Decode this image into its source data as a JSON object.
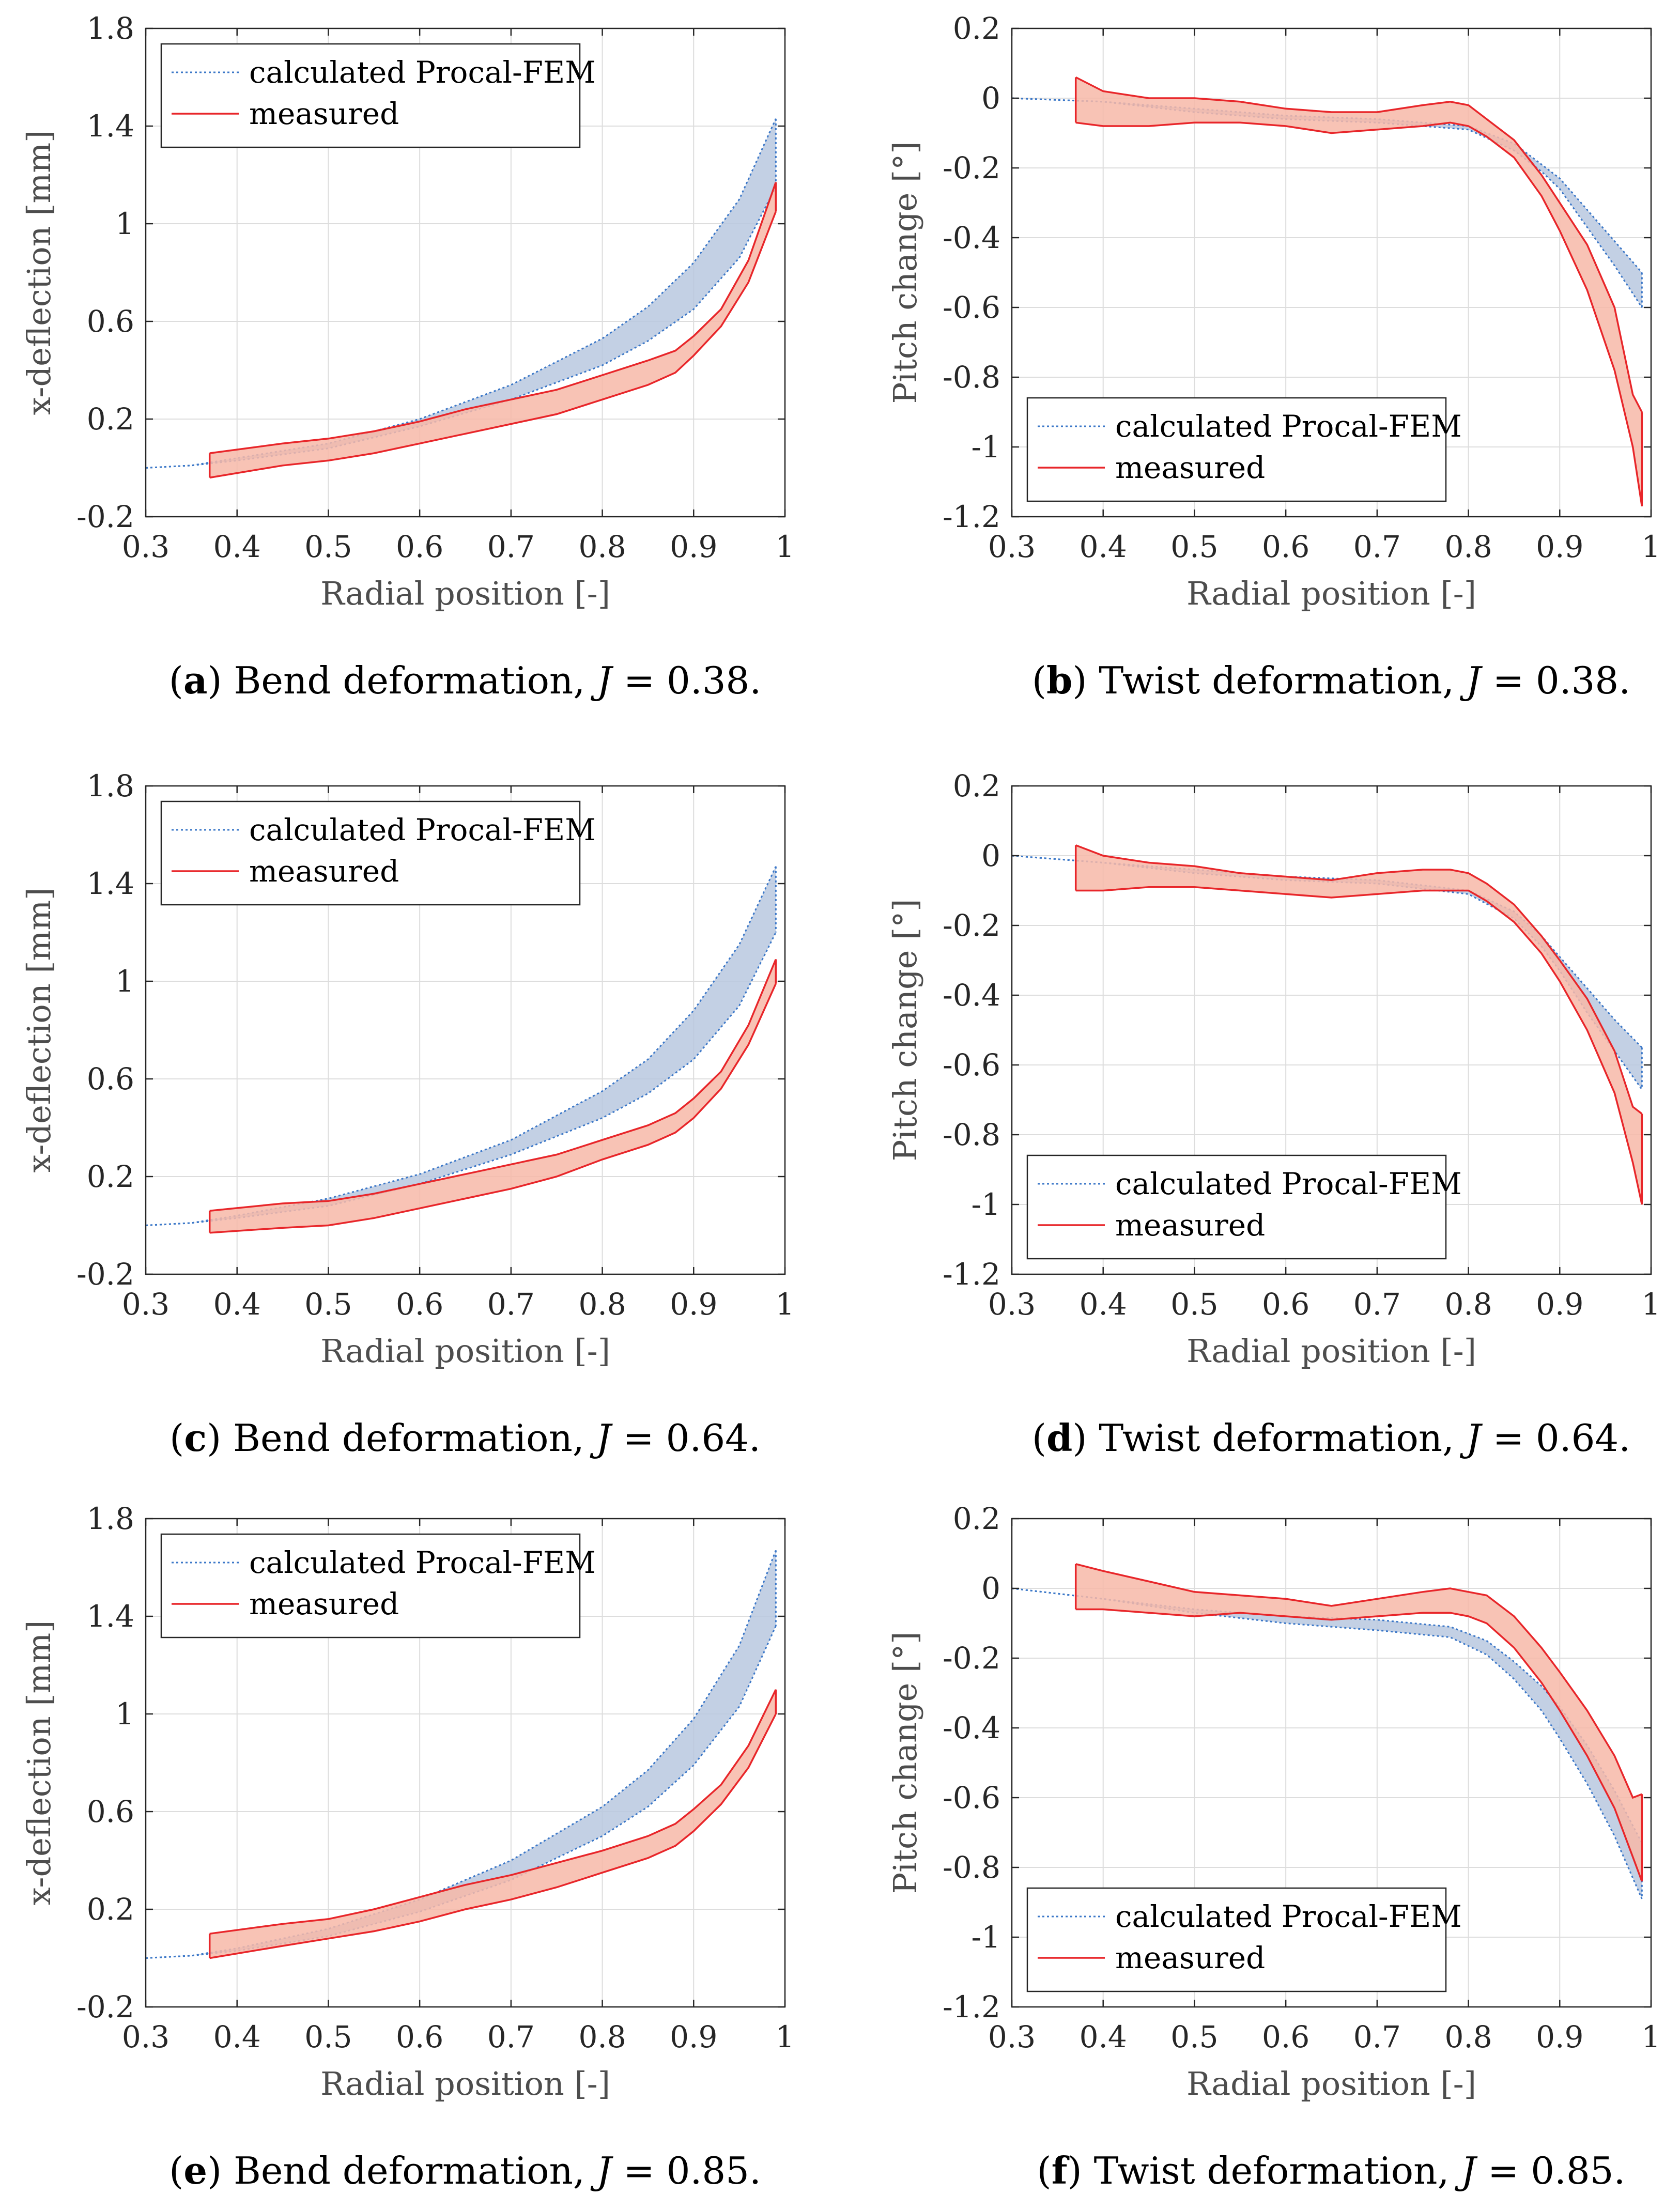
{
  "colors": {
    "calc_line": "#3c78c8",
    "calc_fill": "#b9c8df",
    "meas_line": "#e8262a",
    "meas_fill": "#f7b8a8",
    "grid": "#dddddd",
    "axis": "#262626"
  },
  "chart_data": [
    {
      "type": "area",
      "panel": "a",
      "caption": {
        "letter": "a",
        "text": "Bend deformation,",
        "var": "J",
        "eq": "= 0.38."
      },
      "xlabel": "Radial position [-]",
      "ylabel": "x-deflection [mm]",
      "xlim": [
        0.3,
        1
      ],
      "ylim": [
        -0.2,
        1.8
      ],
      "xticks": [
        0.3,
        0.4,
        0.5,
        0.6,
        0.7,
        0.8,
        0.9,
        1
      ],
      "xtick_labels": [
        "0.3",
        "0.4",
        "0.5",
        "0.6",
        "0.7",
        "0.8",
        "0.9",
        "1"
      ],
      "yticks": [
        -0.2,
        0.2,
        0.6,
        1,
        1.4,
        1.8
      ],
      "ytick_labels": [
        "-0.2",
        "0.2",
        "0.6",
        "1",
        "1.4",
        "1.8"
      ],
      "grid": true,
      "legend": {
        "position": "top-left",
        "entries": [
          "calculated Procal-FEM",
          "measured"
        ]
      },
      "series": [
        {
          "name": "calculated Procal-FEM",
          "x": [
            0.3,
            0.35,
            0.4,
            0.5,
            0.6,
            0.7,
            0.8,
            0.85,
            0.9,
            0.95,
            0.99
          ],
          "upper": [
            0.0,
            0.01,
            0.04,
            0.1,
            0.2,
            0.34,
            0.53,
            0.66,
            0.84,
            1.1,
            1.43
          ],
          "lower": [
            0.0,
            0.01,
            0.03,
            0.08,
            0.17,
            0.28,
            0.42,
            0.52,
            0.65,
            0.86,
            1.15
          ]
        },
        {
          "name": "measured",
          "x": [
            0.37,
            0.45,
            0.5,
            0.55,
            0.6,
            0.65,
            0.7,
            0.75,
            0.8,
            0.85,
            0.88,
            0.9,
            0.93,
            0.96,
            0.99
          ],
          "upper": [
            0.06,
            0.1,
            0.12,
            0.15,
            0.19,
            0.24,
            0.28,
            0.32,
            0.38,
            0.44,
            0.48,
            0.54,
            0.65,
            0.85,
            1.17
          ],
          "lower": [
            -0.04,
            0.01,
            0.03,
            0.06,
            0.1,
            0.14,
            0.18,
            0.22,
            0.28,
            0.34,
            0.39,
            0.46,
            0.58,
            0.76,
            1.05
          ]
        }
      ]
    },
    {
      "type": "area",
      "panel": "b",
      "caption": {
        "letter": "b",
        "text": "Twist deformation,",
        "var": "J",
        "eq": "= 0.38."
      },
      "xlabel": "Radial position [-]",
      "ylabel": "Pitch change [°]",
      "xlim": [
        0.3,
        1
      ],
      "ylim": [
        -1.2,
        0.2
      ],
      "xticks": [
        0.3,
        0.4,
        0.5,
        0.6,
        0.7,
        0.8,
        0.9,
        1
      ],
      "xtick_labels": [
        "0.3",
        "0.4",
        "0.5",
        "0.6",
        "0.7",
        "0.8",
        "0.9",
        "1"
      ],
      "yticks": [
        -1.2,
        -1,
        -0.8,
        -0.6,
        -0.4,
        -0.2,
        0,
        0.2
      ],
      "ytick_labels": [
        "-1.2",
        "-1",
        "-0.8",
        "-0.6",
        "-0.4",
        "-0.2",
        "0",
        "0.2"
      ],
      "grid": true,
      "legend": {
        "position": "bottom-left",
        "entries": [
          "calculated Procal-FEM",
          "measured"
        ]
      },
      "series": [
        {
          "name": "calculated Procal-FEM",
          "x": [
            0.3,
            0.4,
            0.5,
            0.6,
            0.7,
            0.8,
            0.85,
            0.88,
            0.9,
            0.93,
            0.96,
            0.99
          ],
          "upper": [
            0.0,
            -0.01,
            -0.03,
            -0.05,
            -0.06,
            -0.08,
            -0.13,
            -0.19,
            -0.23,
            -0.32,
            -0.41,
            -0.5
          ],
          "lower": [
            0.0,
            -0.01,
            -0.04,
            -0.06,
            -0.07,
            -0.09,
            -0.15,
            -0.21,
            -0.26,
            -0.37,
            -0.48,
            -0.6
          ]
        },
        {
          "name": "measured",
          "x": [
            0.37,
            0.4,
            0.45,
            0.5,
            0.55,
            0.6,
            0.65,
            0.7,
            0.75,
            0.78,
            0.8,
            0.82,
            0.85,
            0.88,
            0.9,
            0.93,
            0.96,
            0.98,
            0.99
          ],
          "upper": [
            0.06,
            0.02,
            0.0,
            0.0,
            -0.01,
            -0.03,
            -0.04,
            -0.04,
            -0.02,
            -0.01,
            -0.02,
            -0.06,
            -0.12,
            -0.22,
            -0.3,
            -0.42,
            -0.6,
            -0.85,
            -0.9
          ],
          "lower": [
            -0.07,
            -0.08,
            -0.08,
            -0.07,
            -0.07,
            -0.08,
            -0.1,
            -0.09,
            -0.08,
            -0.07,
            -0.08,
            -0.11,
            -0.17,
            -0.28,
            -0.38,
            -0.55,
            -0.78,
            -1.0,
            -1.17
          ]
        }
      ]
    },
    {
      "type": "area",
      "panel": "c",
      "caption": {
        "letter": "c",
        "text": "Bend deformation,",
        "var": "J",
        "eq": "= 0.64."
      },
      "xlabel": "Radial position [-]",
      "ylabel": "x-deflection [mm]",
      "xlim": [
        0.3,
        1
      ],
      "ylim": [
        -0.2,
        1.8
      ],
      "xticks": [
        0.3,
        0.4,
        0.5,
        0.6,
        0.7,
        0.8,
        0.9,
        1
      ],
      "xtick_labels": [
        "0.3",
        "0.4",
        "0.5",
        "0.6",
        "0.7",
        "0.8",
        "0.9",
        "1"
      ],
      "yticks": [
        -0.2,
        0.2,
        0.6,
        1,
        1.4,
        1.8
      ],
      "ytick_labels": [
        "-0.2",
        "0.2",
        "0.6",
        "1",
        "1.4",
        "1.8"
      ],
      "grid": true,
      "legend": {
        "position": "top-left",
        "entries": [
          "calculated Procal-FEM",
          "measured"
        ]
      },
      "series": [
        {
          "name": "calculated Procal-FEM",
          "x": [
            0.3,
            0.35,
            0.4,
            0.5,
            0.6,
            0.7,
            0.8,
            0.85,
            0.9,
            0.95,
            0.99
          ],
          "upper": [
            0.0,
            0.01,
            0.04,
            0.11,
            0.21,
            0.35,
            0.55,
            0.68,
            0.88,
            1.15,
            1.47
          ],
          "lower": [
            0.0,
            0.01,
            0.03,
            0.08,
            0.17,
            0.29,
            0.44,
            0.54,
            0.68,
            0.9,
            1.2
          ]
        },
        {
          "name": "measured",
          "x": [
            0.37,
            0.45,
            0.5,
            0.55,
            0.6,
            0.65,
            0.7,
            0.75,
            0.8,
            0.85,
            0.88,
            0.9,
            0.93,
            0.96,
            0.99
          ],
          "upper": [
            0.06,
            0.09,
            0.1,
            0.13,
            0.17,
            0.21,
            0.25,
            0.29,
            0.35,
            0.41,
            0.46,
            0.52,
            0.63,
            0.82,
            1.09
          ],
          "lower": [
            -0.03,
            -0.01,
            0.0,
            0.03,
            0.07,
            0.11,
            0.15,
            0.2,
            0.27,
            0.33,
            0.38,
            0.44,
            0.56,
            0.74,
            0.99
          ]
        }
      ]
    },
    {
      "type": "area",
      "panel": "d",
      "caption": {
        "letter": "d",
        "text": "Twist deformation,",
        "var": "J",
        "eq": "= 0.64."
      },
      "xlabel": "Radial position [-]",
      "ylabel": "Pitch change [°]",
      "xlim": [
        0.3,
        1
      ],
      "ylim": [
        -1.2,
        0.2
      ],
      "xticks": [
        0.3,
        0.4,
        0.5,
        0.6,
        0.7,
        0.8,
        0.9,
        1
      ],
      "xtick_labels": [
        "0.3",
        "0.4",
        "0.5",
        "0.6",
        "0.7",
        "0.8",
        "0.9",
        "1"
      ],
      "yticks": [
        -1.2,
        -1,
        -0.8,
        -0.6,
        -0.4,
        -0.2,
        0,
        0.2
      ],
      "ytick_labels": [
        "-1.2",
        "-1",
        "-0.8",
        "-0.6",
        "-0.4",
        "-0.2",
        "0",
        "0.2"
      ],
      "grid": true,
      "legend": {
        "position": "bottom-left",
        "entries": [
          "calculated Procal-FEM",
          "measured"
        ]
      },
      "series": [
        {
          "name": "calculated Procal-FEM",
          "x": [
            0.3,
            0.4,
            0.5,
            0.6,
            0.7,
            0.8,
            0.85,
            0.88,
            0.9,
            0.93,
            0.96,
            0.99
          ],
          "upper": [
            0.0,
            -0.02,
            -0.04,
            -0.06,
            -0.07,
            -0.1,
            -0.16,
            -0.23,
            -0.29,
            -0.38,
            -0.47,
            -0.55
          ],
          "lower": [
            0.0,
            -0.02,
            -0.05,
            -0.07,
            -0.08,
            -0.11,
            -0.18,
            -0.26,
            -0.33,
            -0.45,
            -0.56,
            -0.67
          ]
        },
        {
          "name": "measured",
          "x": [
            0.37,
            0.4,
            0.45,
            0.5,
            0.55,
            0.6,
            0.65,
            0.7,
            0.75,
            0.78,
            0.8,
            0.82,
            0.85,
            0.88,
            0.9,
            0.93,
            0.96,
            0.98,
            0.99
          ],
          "upper": [
            0.03,
            0.0,
            -0.02,
            -0.03,
            -0.05,
            -0.06,
            -0.07,
            -0.05,
            -0.04,
            -0.04,
            -0.05,
            -0.08,
            -0.14,
            -0.23,
            -0.3,
            -0.41,
            -0.56,
            -0.72,
            -0.74
          ],
          "lower": [
            -0.1,
            -0.1,
            -0.09,
            -0.09,
            -0.1,
            -0.11,
            -0.12,
            -0.11,
            -0.1,
            -0.1,
            -0.1,
            -0.13,
            -0.19,
            -0.28,
            -0.36,
            -0.5,
            -0.68,
            -0.88,
            -1.0
          ]
        }
      ]
    },
    {
      "type": "area",
      "panel": "e",
      "caption": {
        "letter": "e",
        "text": "Bend deformation,",
        "var": "J",
        "eq": "= 0.85."
      },
      "xlabel": "Radial position [-]",
      "ylabel": "x-deflection [mm]",
      "xlim": [
        0.3,
        1
      ],
      "ylim": [
        -0.2,
        1.8
      ],
      "xticks": [
        0.3,
        0.4,
        0.5,
        0.6,
        0.7,
        0.8,
        0.9,
        1
      ],
      "xtick_labels": [
        "0.3",
        "0.4",
        "0.5",
        "0.6",
        "0.7",
        "0.8",
        "0.9",
        "1"
      ],
      "yticks": [
        -0.2,
        0.2,
        0.6,
        1,
        1.4,
        1.8
      ],
      "ytick_labels": [
        "-0.2",
        "0.2",
        "0.6",
        "1",
        "1.4",
        "1.8"
      ],
      "grid": true,
      "legend": {
        "position": "top-left",
        "entries": [
          "calculated Procal-FEM",
          "measured"
        ]
      },
      "series": [
        {
          "name": "calculated Procal-FEM",
          "x": [
            0.3,
            0.35,
            0.4,
            0.5,
            0.6,
            0.7,
            0.8,
            0.85,
            0.9,
            0.95,
            0.99
          ],
          "upper": [
            0.0,
            0.01,
            0.04,
            0.12,
            0.24,
            0.4,
            0.62,
            0.77,
            0.98,
            1.28,
            1.67
          ],
          "lower": [
            0.0,
            0.01,
            0.03,
            0.09,
            0.19,
            0.32,
            0.5,
            0.62,
            0.79,
            1.03,
            1.36
          ]
        },
        {
          "name": "measured",
          "x": [
            0.37,
            0.45,
            0.5,
            0.55,
            0.6,
            0.65,
            0.7,
            0.75,
            0.8,
            0.85,
            0.88,
            0.9,
            0.93,
            0.96,
            0.99
          ],
          "upper": [
            0.1,
            0.14,
            0.16,
            0.2,
            0.25,
            0.3,
            0.34,
            0.39,
            0.44,
            0.5,
            0.55,
            0.61,
            0.71,
            0.87,
            1.1
          ],
          "lower": [
            0.0,
            0.05,
            0.08,
            0.11,
            0.15,
            0.2,
            0.24,
            0.29,
            0.35,
            0.41,
            0.46,
            0.52,
            0.63,
            0.78,
            1.0
          ]
        }
      ]
    },
    {
      "type": "area",
      "panel": "f",
      "caption": {
        "letter": "f",
        "text": "Twist deformation,",
        "var": "J",
        "eq": "= 0.85."
      },
      "xlabel": "Radial position [-]",
      "ylabel": "Pitch change [°]",
      "xlim": [
        0.3,
        1
      ],
      "ylim": [
        -1.2,
        0.2
      ],
      "xticks": [
        0.3,
        0.4,
        0.5,
        0.6,
        0.7,
        0.8,
        0.9,
        1
      ],
      "xtick_labels": [
        "0.3",
        "0.4",
        "0.5",
        "0.6",
        "0.7",
        "0.8",
        "0.9",
        "1"
      ],
      "yticks": [
        -1.2,
        -1,
        -0.8,
        -0.6,
        -0.4,
        -0.2,
        0,
        0.2
      ],
      "ytick_labels": [
        "-1.2",
        "-1",
        "-0.8",
        "-0.6",
        "-0.4",
        "-0.2",
        "0",
        "0.2"
      ],
      "grid": true,
      "legend": {
        "position": "bottom-left",
        "entries": [
          "calculated Procal-FEM",
          "measured"
        ]
      },
      "series": [
        {
          "name": "calculated Procal-FEM",
          "x": [
            0.3,
            0.4,
            0.5,
            0.6,
            0.7,
            0.78,
            0.82,
            0.85,
            0.88,
            0.9,
            0.93,
            0.96,
            0.99
          ],
          "upper": [
            0.0,
            -0.03,
            -0.06,
            -0.08,
            -0.09,
            -0.11,
            -0.15,
            -0.21,
            -0.28,
            -0.34,
            -0.45,
            -0.58,
            -0.73
          ],
          "lower": [
            0.0,
            -0.03,
            -0.07,
            -0.1,
            -0.12,
            -0.14,
            -0.19,
            -0.26,
            -0.35,
            -0.43,
            -0.56,
            -0.71,
            -0.89
          ]
        },
        {
          "name": "measured",
          "x": [
            0.37,
            0.4,
            0.45,
            0.5,
            0.55,
            0.6,
            0.65,
            0.7,
            0.75,
            0.78,
            0.8,
            0.82,
            0.85,
            0.88,
            0.9,
            0.93,
            0.96,
            0.98,
            0.99
          ],
          "upper": [
            0.07,
            0.05,
            0.02,
            -0.01,
            -0.02,
            -0.03,
            -0.05,
            -0.03,
            -0.01,
            0.0,
            -0.01,
            -0.02,
            -0.08,
            -0.17,
            -0.24,
            -0.35,
            -0.48,
            -0.6,
            -0.59
          ],
          "lower": [
            -0.06,
            -0.06,
            -0.07,
            -0.08,
            -0.07,
            -0.08,
            -0.09,
            -0.08,
            -0.07,
            -0.07,
            -0.08,
            -0.1,
            -0.17,
            -0.27,
            -0.35,
            -0.48,
            -0.63,
            -0.77,
            -0.84
          ]
        }
      ]
    }
  ]
}
